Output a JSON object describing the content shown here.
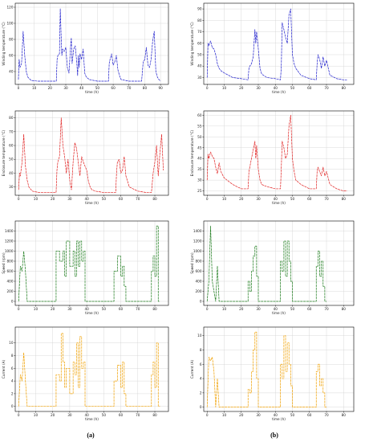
{
  "panel_labels": [
    "(a)",
    "(b)"
  ],
  "chart_data": [
    {
      "id": "a1",
      "type": "line",
      "xlabel": "time (h)",
      "ylabel": "Winding temperature (°C)",
      "color": "#1f1fcc",
      "xlim": [
        -2,
        95
      ],
      "ylim": [
        24,
        125
      ],
      "xticks": [
        0,
        10,
        20,
        30,
        40,
        50,
        60,
        70,
        80,
        90
      ],
      "yticks": [
        40,
        60,
        80,
        100,
        120
      ],
      "x": [
        0,
        0.5,
        1,
        2,
        3,
        4,
        5,
        6,
        8,
        12,
        16,
        20,
        24,
        24.5,
        25,
        26,
        26.5,
        27,
        27.5,
        28,
        29,
        30,
        31,
        32,
        33,
        33.5,
        34,
        35,
        36,
        37,
        37.5,
        38,
        38.5,
        39,
        40,
        41,
        42,
        43,
        45,
        50,
        55,
        57,
        57.5,
        58,
        59,
        60,
        61,
        62,
        63,
        64,
        65,
        70,
        75,
        78,
        79,
        80,
        81,
        82,
        83,
        84,
        85,
        86,
        87,
        88,
        89,
        90
      ],
      "y": [
        30,
        55,
        45,
        50,
        90,
        60,
        40,
        33,
        29,
        28,
        28,
        28,
        28,
        55,
        60,
        62,
        118,
        88,
        60,
        68,
        65,
        70,
        45,
        38,
        70,
        82,
        50,
        68,
        72,
        50,
        35,
        60,
        45,
        62,
        55,
        68,
        38,
        33,
        30,
        28,
        28,
        28,
        50,
        55,
        62,
        48,
        52,
        60,
        42,
        35,
        30,
        28,
        28,
        28,
        52,
        55,
        70,
        48,
        45,
        55,
        78,
        90,
        40,
        33,
        30,
        28
      ]
    },
    {
      "id": "a2",
      "type": "line",
      "xlabel": "time (h)",
      "ylabel": "Enclosure temperature (°C)",
      "color": "#e02020",
      "xlim": [
        -2,
        88
      ],
      "ylim": [
        24,
        85
      ],
      "xticks": [
        0,
        10,
        20,
        30,
        40,
        50,
        60,
        70,
        80
      ],
      "yticks": [
        30,
        40,
        50,
        60,
        70,
        80
      ],
      "x": [
        0,
        0.5,
        1,
        2,
        3,
        4,
        5,
        6,
        8,
        12,
        16,
        20,
        22,
        22.5,
        23,
        24,
        25,
        26,
        27,
        28,
        29,
        30,
        31,
        32,
        33,
        34,
        35,
        36,
        37,
        38,
        39,
        40,
        41,
        42,
        43,
        45,
        50,
        55,
        57,
        57.5,
        58,
        59,
        60,
        61,
        62,
        63,
        65,
        70,
        75,
        78,
        79,
        80,
        81,
        82,
        83,
        84,
        85
      ],
      "y": [
        28,
        40,
        38,
        48,
        68,
        45,
        35,
        30,
        27,
        26,
        26,
        26,
        26,
        42,
        48,
        52,
        80,
        60,
        52,
        40,
        50,
        35,
        28,
        48,
        62,
        58,
        48,
        38,
        52,
        48,
        45,
        42,
        34,
        30,
        28,
        27,
        26,
        26,
        26,
        40,
        48,
        50,
        40,
        42,
        52,
        38,
        30,
        27,
        26,
        26,
        40,
        48,
        60,
        38,
        55,
        68,
        42
      ]
    },
    {
      "id": "a3",
      "type": "line",
      "xlabel": "time (h)",
      "ylabel": "Speed (rpm)",
      "color": "#1a7a1a",
      "xlim": [
        -2,
        88
      ],
      "ylim": [
        -80,
        1600
      ],
      "xticks": [
        0,
        10,
        20,
        30,
        40,
        50,
        60,
        70,
        80
      ],
      "yticks": [
        0,
        200,
        400,
        600,
        800,
        1000,
        1200,
        1400
      ],
      "x": [
        0,
        1,
        1,
        2,
        2,
        3,
        3,
        4,
        4,
        5,
        5,
        22,
        22,
        24,
        24,
        26,
        26,
        27,
        27,
        28,
        28,
        30,
        30,
        32,
        32,
        33,
        33,
        34,
        34,
        35,
        35,
        36,
        36,
        37,
        37,
        38,
        38,
        39,
        39,
        42,
        42,
        56,
        56,
        58,
        58,
        60,
        60,
        61,
        61,
        62,
        62,
        63,
        63,
        78,
        78,
        79,
        79,
        80,
        80,
        81,
        81,
        82,
        82,
        83
      ],
      "y": [
        0,
        700,
        700,
        600,
        600,
        1000,
        1000,
        600,
        600,
        0,
        0,
        0,
        1000,
        1000,
        800,
        800,
        1000,
        1000,
        500,
        500,
        1200,
        1200,
        700,
        700,
        1000,
        1000,
        500,
        500,
        1200,
        1200,
        700,
        700,
        1200,
        1200,
        800,
        800,
        1000,
        1000,
        0,
        0,
        0,
        0,
        600,
        600,
        900,
        900,
        500,
        500,
        700,
        700,
        300,
        300,
        0,
        0,
        600,
        600,
        900,
        900,
        500,
        500,
        1500,
        1500,
        0,
        0
      ]
    },
    {
      "id": "a4",
      "type": "line",
      "xlabel": "time (h)",
      "ylabel": "Current (A)",
      "color": "#f0a000",
      "xlim": [
        -2,
        88
      ],
      "ylim": [
        -0.8,
        12.5
      ],
      "xticks": [
        0,
        10,
        20,
        30,
        40,
        50,
        60,
        70,
        80
      ],
      "yticks": [
        0,
        2,
        4,
        6,
        8,
        10
      ],
      "x": [
        0,
        1,
        1,
        2,
        2,
        3,
        3,
        4,
        4,
        5,
        5,
        22,
        22,
        24,
        24,
        25,
        25,
        26,
        26,
        27,
        27,
        28,
        28,
        30,
        30,
        32,
        32,
        33,
        33,
        34,
        34,
        35,
        35,
        36,
        36,
        37,
        37,
        38,
        38,
        39,
        39,
        42,
        42,
        56,
        56,
        58,
        58,
        60,
        60,
        61,
        61,
        62,
        62,
        63,
        63,
        78,
        78,
        79,
        79,
        80,
        80,
        81,
        81,
        82,
        82,
        83
      ],
      "y": [
        0,
        5,
        5,
        4,
        4,
        8.5,
        8.5,
        4,
        4,
        0,
        0,
        0,
        5,
        5,
        4,
        4,
        11.5,
        11.5,
        7,
        7,
        3,
        3,
        6,
        6,
        2,
        2,
        7,
        7,
        5,
        5,
        10,
        10,
        3,
        3,
        11,
        11,
        6,
        6,
        7,
        7,
        0,
        0,
        0,
        0,
        4,
        4,
        6.5,
        6.5,
        3,
        3,
        7,
        7,
        2,
        2,
        0,
        0,
        5,
        5,
        7,
        7,
        3,
        3,
        10,
        10,
        0,
        0
      ]
    },
    {
      "id": "b1",
      "type": "line",
      "xlabel": "time (h)",
      "ylabel": "Winding temperature (°C)",
      "color": "#1f1fcc",
      "xlim": [
        -2,
        86
      ],
      "ylim": [
        24,
        95
      ],
      "xticks": [
        0,
        10,
        20,
        30,
        40,
        50,
        60,
        70,
        80
      ],
      "yticks": [
        30,
        40,
        50,
        60,
        70,
        80,
        90
      ],
      "x": [
        0,
        0.5,
        1,
        2,
        3,
        4,
        5,
        6,
        7,
        8,
        10,
        15,
        20,
        24,
        24.5,
        25,
        26,
        27,
        28,
        28.5,
        29,
        30,
        31,
        32,
        35,
        40,
        43,
        43.5,
        44,
        45,
        46,
        47,
        48,
        49,
        50,
        51,
        52,
        55,
        60,
        64,
        64.5,
        65,
        66,
        67,
        68,
        69,
        70,
        72,
        76,
        80,
        82
      ],
      "y": [
        30,
        60,
        58,
        62,
        56,
        55,
        50,
        42,
        38,
        36,
        34,
        30,
        29,
        28,
        38,
        40,
        42,
        48,
        72,
        60,
        70,
        55,
        38,
        33,
        30,
        29,
        28,
        40,
        78,
        72,
        65,
        60,
        85,
        90,
        50,
        42,
        38,
        32,
        29,
        28,
        42,
        50,
        46,
        38,
        48,
        40,
        45,
        32,
        29,
        28,
        28
      ]
    },
    {
      "id": "b2",
      "type": "line",
      "xlabel": "time (h)",
      "ylabel": "Enclosure temperature (°C)",
      "color": "#e02020",
      "xlim": [
        -2,
        86
      ],
      "ylim": [
        23,
        62
      ],
      "xticks": [
        0,
        10,
        20,
        30,
        40,
        50,
        60,
        70,
        80
      ],
      "yticks": [
        25,
        30,
        35,
        40,
        45,
        50,
        55,
        60
      ],
      "x": [
        0,
        0.5,
        1,
        2,
        3,
        4,
        5,
        6,
        7,
        8,
        10,
        15,
        20,
        24,
        24.5,
        25,
        26,
        27,
        28,
        28.5,
        29,
        30,
        31,
        32,
        35,
        40,
        43,
        43.5,
        44,
        45,
        46,
        47,
        48,
        49,
        50,
        51,
        52,
        55,
        60,
        64,
        64.5,
        65,
        66,
        67,
        68,
        69,
        70,
        72,
        76,
        80,
        82
      ],
      "y": [
        30,
        42,
        40,
        43,
        41,
        40,
        36,
        33,
        38,
        34,
        31,
        28,
        26,
        26,
        34,
        36,
        40,
        44,
        48,
        40,
        46,
        35,
        30,
        28,
        27,
        26,
        26,
        36,
        48,
        45,
        40,
        42,
        55,
        60,
        40,
        34,
        30,
        28,
        26,
        26,
        34,
        36,
        34,
        32,
        36,
        32,
        34,
        28,
        26,
        25,
        25
      ]
    },
    {
      "id": "b3",
      "type": "line",
      "xlabel": "time (h)",
      "ylabel": "Speed (rpm)",
      "color": "#1a7a1a",
      "xlim": [
        -2,
        86
      ],
      "ylim": [
        -80,
        1600
      ],
      "xticks": [
        0,
        10,
        20,
        30,
        40,
        50,
        60,
        70,
        80
      ],
      "yticks": [
        0,
        200,
        400,
        600,
        800,
        1000,
        1200,
        1400
      ],
      "x": [
        0,
        1,
        1,
        2,
        2,
        3,
        3,
        4,
        4,
        5,
        5,
        6,
        6,
        7,
        7,
        8,
        8,
        24,
        24,
        25,
        25,
        26,
        26,
        27,
        27,
        28,
        28,
        29,
        29,
        30,
        30,
        43,
        43,
        44,
        44,
        45,
        45,
        46,
        46,
        47,
        47,
        48,
        48,
        49,
        49,
        50,
        50,
        64,
        64,
        65,
        65,
        66,
        66,
        67,
        67,
        68,
        68,
        69,
        69,
        70
      ],
      "y": [
        0,
        400,
        400,
        1500,
        1500,
        400,
        400,
        200,
        200,
        0,
        0,
        700,
        700,
        0,
        0,
        0,
        0,
        0,
        400,
        400,
        200,
        200,
        600,
        600,
        900,
        900,
        1100,
        1100,
        500,
        500,
        0,
        0,
        800,
        800,
        600,
        600,
        1200,
        1200,
        500,
        500,
        1200,
        1200,
        800,
        800,
        400,
        400,
        0,
        0,
        700,
        700,
        1000,
        1000,
        500,
        500,
        800,
        800,
        300,
        300,
        0,
        0
      ]
    },
    {
      "id": "b4",
      "type": "line",
      "xlabel": "time (h)",
      "ylabel": "Current (A)",
      "color": "#f0a000",
      "xlim": [
        -2,
        86
      ],
      "ylim": [
        -0.6,
        11.2
      ],
      "xticks": [
        0,
        10,
        20,
        30,
        40,
        50,
        60,
        70,
        80
      ],
      "yticks": [
        0,
        2,
        4,
        6,
        8,
        10
      ],
      "x": [
        0,
        1,
        1,
        2,
        2,
        3,
        3,
        4,
        4,
        5,
        5,
        6,
        6,
        7,
        7,
        8,
        8,
        24,
        24,
        25,
        25,
        26,
        26,
        27,
        27,
        28,
        28,
        29,
        29,
        30,
        30,
        43,
        43,
        44,
        44,
        45,
        45,
        46,
        46,
        47,
        47,
        48,
        48,
        49,
        49,
        50,
        50,
        64,
        64,
        65,
        65,
        66,
        66,
        67,
        67,
        68,
        68,
        69,
        69,
        70
      ],
      "y": [
        0,
        7,
        7,
        6.5,
        6.5,
        7,
        7,
        5,
        5,
        0,
        0,
        4,
        4,
        0,
        0,
        0,
        0,
        0,
        2.5,
        2.5,
        2,
        2,
        5,
        5,
        8,
        8,
        10.5,
        10.5,
        4,
        4,
        0,
        0,
        6,
        6,
        4,
        4,
        10,
        10,
        5,
        5,
        9,
        9,
        6,
        6,
        3,
        3,
        0,
        0,
        5,
        5,
        6,
        6,
        3,
        3,
        4,
        4,
        2,
        2,
        0,
        0
      ]
    }
  ]
}
